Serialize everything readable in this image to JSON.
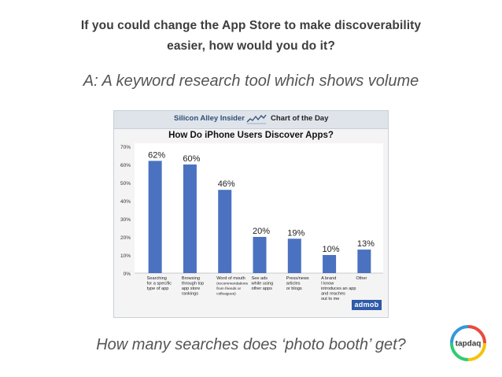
{
  "heading": {
    "line1": "If you could change the App Store to make discoverability",
    "line2": "easier, how would you do it?"
  },
  "answer": "A: A keyword research tool which shows volume",
  "question": "How many searches does ‘photo booth’ get?",
  "chart_banner": {
    "left": "Silicon Alley Insider",
    "right": "Chart of the Day",
    "icon": "trend-sparkline-icon"
  },
  "admob_label": "admob",
  "logo_text": "tapdaq",
  "colors": {
    "bar": "#4a72c0",
    "text": "#3d3d3d",
    "italic_text": "#555555",
    "admob": "#2e5aa8"
  },
  "chart_data": {
    "type": "bar",
    "title": "How Do iPhone Users Discover Apps?",
    "categories": [
      [
        "Searching",
        "for a specific",
        "type of app"
      ],
      [
        "Browsing",
        "through top",
        "app store",
        "rankings"
      ],
      [
        "Word of mouth",
        "(recommendations",
        "from friends or",
        "colleagues)"
      ],
      [
        "See ads",
        "while using",
        "other apps"
      ],
      [
        "Press/news",
        "articles",
        "or blogs"
      ],
      [
        "A brand",
        "I know",
        "introduces an app",
        "and reaches",
        "out to me"
      ],
      [
        "Other"
      ]
    ],
    "values": [
      62,
      60,
      46,
      20,
      19,
      10,
      13
    ],
    "data_labels": [
      "62%",
      "60%",
      "46%",
      "20%",
      "19%",
      "10%",
      "13%"
    ],
    "yticks": [
      "0%",
      "10%",
      "20%",
      "30%",
      "40%",
      "50%",
      "60%",
      "70%"
    ],
    "ylim": [
      0,
      70
    ],
    "xlabel": "",
    "ylabel": "",
    "grid": false
  }
}
